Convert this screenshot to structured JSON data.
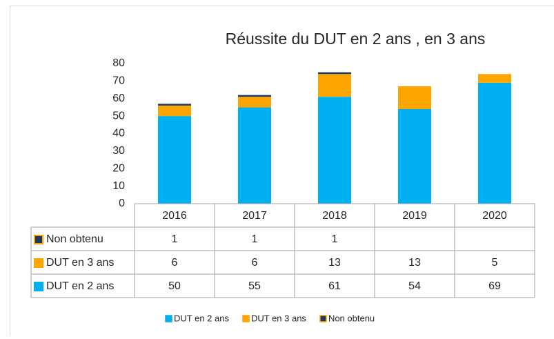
{
  "chart_data": {
    "type": "bar",
    "stacked": true,
    "title": "Réussite du DUT en 2 ans , en 3 ans",
    "categories": [
      "2016",
      "2017",
      "2018",
      "2019",
      "2020"
    ],
    "series": [
      {
        "name": "DUT en 2 ans",
        "color": "#00b0f0",
        "values": [
          50,
          55,
          61,
          54,
          69
        ]
      },
      {
        "name": "DUT en 3 ans",
        "color": "#ffa500",
        "values": [
          6,
          6,
          13,
          13,
          5
        ]
      },
      {
        "name": "Non obtenu",
        "color": "#203864",
        "edgecolor": "#ffa500",
        "values": [
          1,
          1,
          1,
          null,
          null
        ]
      }
    ],
    "ylim": [
      0,
      80
    ],
    "yticks": [
      0,
      10,
      20,
      30,
      40,
      50,
      60,
      70,
      80
    ],
    "grid": false,
    "legend": "bottom",
    "data_table": true
  }
}
